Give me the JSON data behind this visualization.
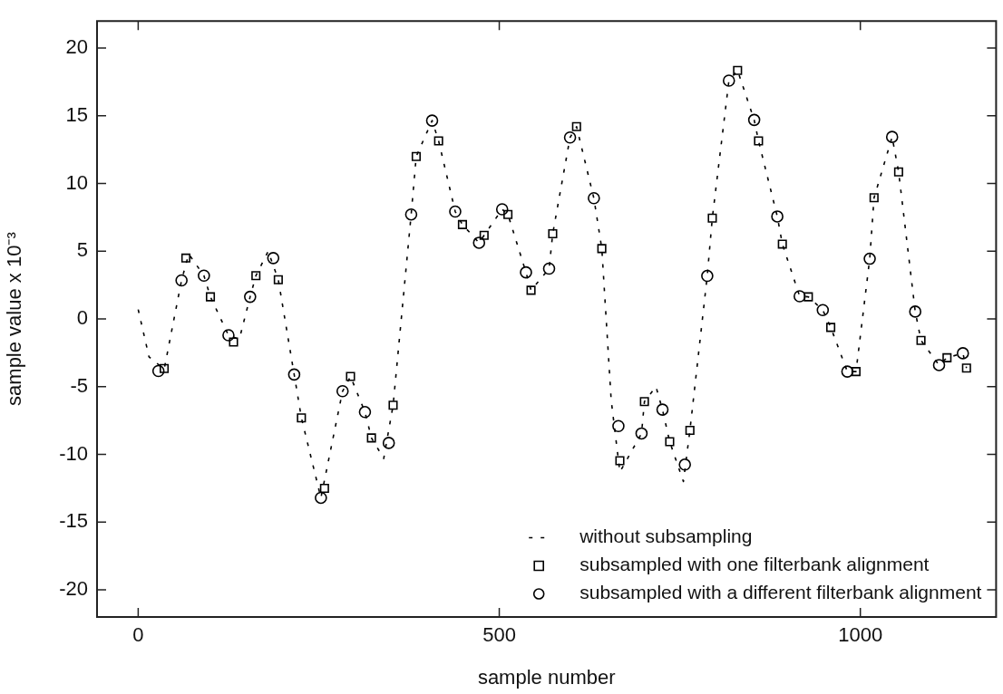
{
  "chart_data": {
    "type": "scatter",
    "xlabel": "sample number",
    "ylabel": "sample value x 10⁻³",
    "xlim": [
      -57,
      1188
    ],
    "ylim": [
      -22,
      22
    ],
    "xticks": [
      0,
      500,
      1000
    ],
    "yticks": [
      -20,
      -15,
      -10,
      -5,
      0,
      5,
      10,
      15,
      20
    ],
    "grid": false,
    "legend": "bottom right",
    "series": [
      {
        "name": "without subsampling",
        "type": "line",
        "color": "#000000",
        "marker": "none",
        "line_style": "dashed",
        "x": [
          0,
          15,
          36,
          60,
          70,
          91,
          100,
          125,
          140,
          155,
          163,
          180,
          194,
          216,
          226,
          253,
          283,
          294,
          314,
          323,
          340,
          353,
          378,
          385,
          407,
          416,
          439,
          449,
          472,
          479,
          504,
          512,
          537,
          544,
          569,
          574,
          598,
          607,
          631,
          642,
          655,
          667,
          697,
          701,
          717,
          726,
          736,
          755,
          764,
          788,
          795,
          818,
          830,
          853,
          859,
          885,
          892,
          916,
          928,
          948,
          959,
          982,
          994,
          1013,
          1019,
          1044,
          1053,
          1076,
          1084,
          1109,
          1120,
          1142,
          1147
        ],
        "values": [
          0.7,
          -2.8,
          -3.7,
          2.85,
          4.8,
          3.2,
          1.64,
          -1.2,
          -1.5,
          1.64,
          3.2,
          5.0,
          2.9,
          -4.1,
          -7.3,
          -13.2,
          -5.33,
          -4.24,
          -6.87,
          -8.78,
          -10.3,
          -6.36,
          7.72,
          12.0,
          14.65,
          13.15,
          7.93,
          6.97,
          5.63,
          6.18,
          8.1,
          7.72,
          3.44,
          2.12,
          3.72,
          6.29,
          13.4,
          14.2,
          8.92,
          5.2,
          -6.0,
          -11.3,
          -8.45,
          -6.1,
          -5.0,
          -6.69,
          -9.06,
          -12.0,
          -8.22,
          3.18,
          7.45,
          17.6,
          18.35,
          14.7,
          13.15,
          7.57,
          5.53,
          1.68,
          1.64,
          0.66,
          -0.62,
          -3.88,
          -3.88,
          4.45,
          8.95,
          13.44,
          10.86,
          0.55,
          -1.58,
          -3.4,
          -2.86,
          -2.53,
          -3.62
        ]
      },
      {
        "name": "subsampled with one filterbank alignment",
        "color": "#000000",
        "marker": "square",
        "x": [
          36,
          66,
          100,
          132,
          163,
          194,
          226,
          258,
          294,
          323,
          353,
          385,
          416,
          449,
          479,
          512,
          544,
          574,
          607,
          642,
          667,
          701,
          736,
          764,
          795,
          830,
          859,
          892,
          928,
          959,
          994,
          1019,
          1053,
          1084,
          1120,
          1147
        ],
        "values": [
          -3.66,
          4.5,
          1.64,
          -1.7,
          3.2,
          2.9,
          -7.3,
          -12.5,
          -4.24,
          -8.78,
          -6.36,
          12.0,
          13.15,
          6.97,
          6.18,
          7.72,
          2.12,
          6.29,
          14.2,
          5.2,
          -10.46,
          -6.1,
          -9.06,
          -8.22,
          7.45,
          18.35,
          13.15,
          5.53,
          1.64,
          -0.62,
          -3.88,
          8.95,
          10.86,
          -1.58,
          -2.86,
          -3.62
        ]
      },
      {
        "name": "subsampled with a different filterbank alignment",
        "color": "#000000",
        "marker": "circle",
        "x": [
          28,
          60,
          91,
          125,
          155,
          187,
          216,
          253,
          283,
          314,
          347,
          378,
          407,
          439,
          472,
          504,
          537,
          569,
          598,
          631,
          665,
          697,
          726,
          757,
          788,
          818,
          853,
          885,
          916,
          948,
          982,
          1013,
          1044,
          1076,
          1109,
          1142
        ],
        "values": [
          -3.84,
          2.85,
          3.2,
          -1.2,
          1.64,
          4.5,
          -4.1,
          -13.2,
          -5.33,
          -6.87,
          -9.15,
          7.72,
          14.65,
          7.93,
          5.63,
          8.1,
          3.44,
          3.72,
          13.4,
          8.92,
          -7.9,
          -8.45,
          -6.69,
          -10.75,
          3.18,
          17.6,
          14.7,
          7.57,
          1.68,
          0.66,
          -3.88,
          4.45,
          13.44,
          0.55,
          -3.4,
          -2.53
        ]
      }
    ]
  }
}
